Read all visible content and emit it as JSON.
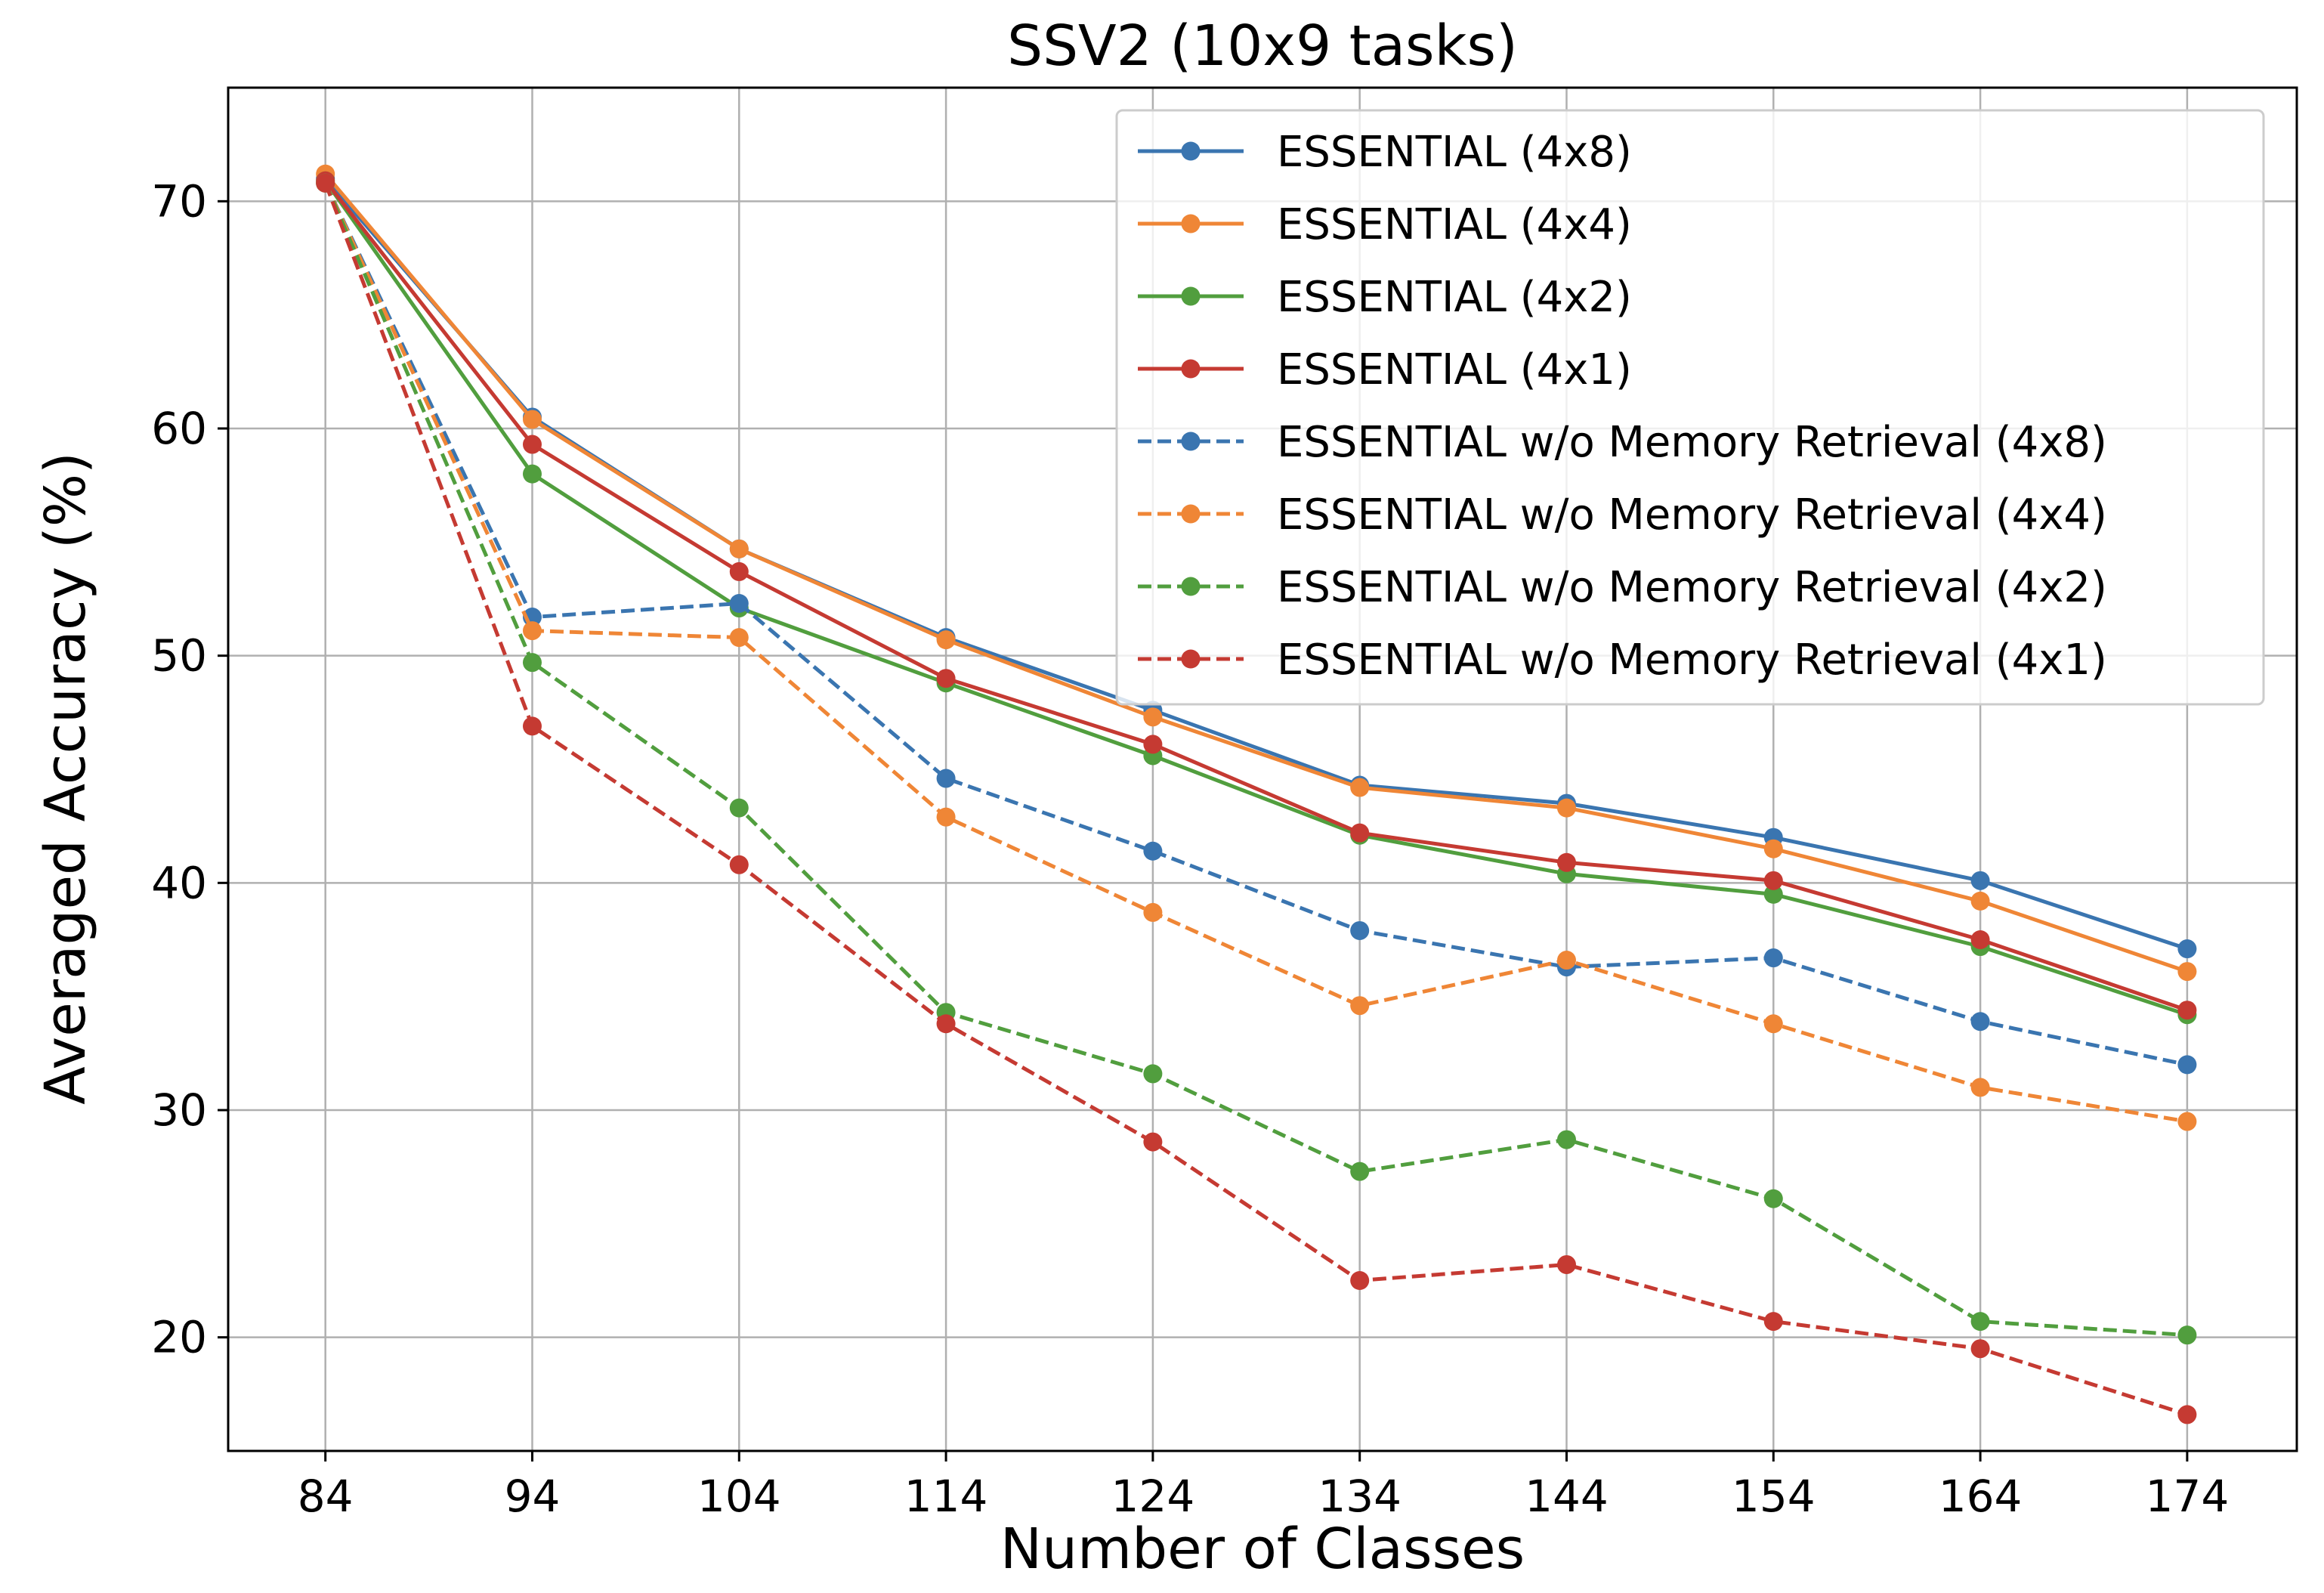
{
  "chart_data": {
    "type": "line",
    "title": "SSV2 (10x9 tasks)",
    "xlabel": "Number of Classes",
    "ylabel": "Averaged Accuracy (%)",
    "x": [
      84,
      94,
      104,
      114,
      124,
      134,
      144,
      154,
      164,
      174
    ],
    "xticks": [
      "84",
      "94",
      "104",
      "114",
      "124",
      "134",
      "144",
      "154",
      "164",
      "174"
    ],
    "yticks": [
      "20",
      "30",
      "40",
      "50",
      "60",
      "70"
    ],
    "ylim": [
      15,
      75
    ],
    "grid": true,
    "legend_position": "upper right",
    "series": [
      {
        "name": "ESSENTIAL (4x8)",
        "color": "#3a75b0",
        "style": "solid",
        "values": [
          71.0,
          60.5,
          54.7,
          50.8,
          47.6,
          44.3,
          43.5,
          42.0,
          40.1,
          37.1
        ]
      },
      {
        "name": "ESSENTIAL (4x4)",
        "color": "#ef8636",
        "style": "solid",
        "values": [
          71.2,
          60.4,
          54.7,
          50.7,
          47.3,
          44.2,
          43.3,
          41.5,
          39.2,
          36.1
        ]
      },
      {
        "name": "ESSENTIAL (4x2)",
        "color": "#519e3e",
        "style": "solid",
        "values": [
          70.9,
          58.0,
          52.1,
          48.8,
          45.6,
          42.1,
          40.4,
          39.5,
          37.2,
          34.2
        ]
      },
      {
        "name": "ESSENTIAL (4x1)",
        "color": "#c53a32",
        "style": "solid",
        "values": [
          70.9,
          59.3,
          53.7,
          49.0,
          46.1,
          42.2,
          40.9,
          40.1,
          37.5,
          34.4
        ]
      },
      {
        "name": "ESSENTIAL w/o Memory Retrieval (4x8)",
        "color": "#3a75b0",
        "style": "dashed",
        "values": [
          70.8,
          51.7,
          52.3,
          44.6,
          41.4,
          37.9,
          36.3,
          36.7,
          33.9,
          32.0
        ]
      },
      {
        "name": "ESSENTIAL w/o Memory Retrieval (4x4)",
        "color": "#ef8636",
        "style": "dashed",
        "values": [
          70.8,
          51.1,
          50.8,
          42.9,
          38.7,
          34.6,
          36.6,
          33.8,
          31.0,
          29.5
        ]
      },
      {
        "name": "ESSENTIAL w/o Memory Retrieval (4x2)",
        "color": "#519e3e",
        "style": "dashed",
        "values": [
          70.8,
          49.7,
          43.3,
          34.3,
          31.6,
          27.3,
          28.7,
          26.1,
          20.7,
          20.1
        ]
      },
      {
        "name": "ESSENTIAL w/o Memory Retrieval (4x1)",
        "color": "#c53a32",
        "style": "dashed",
        "values": [
          70.8,
          46.9,
          40.8,
          33.8,
          28.6,
          22.5,
          23.2,
          20.7,
          19.5,
          16.6
        ]
      }
    ]
  }
}
